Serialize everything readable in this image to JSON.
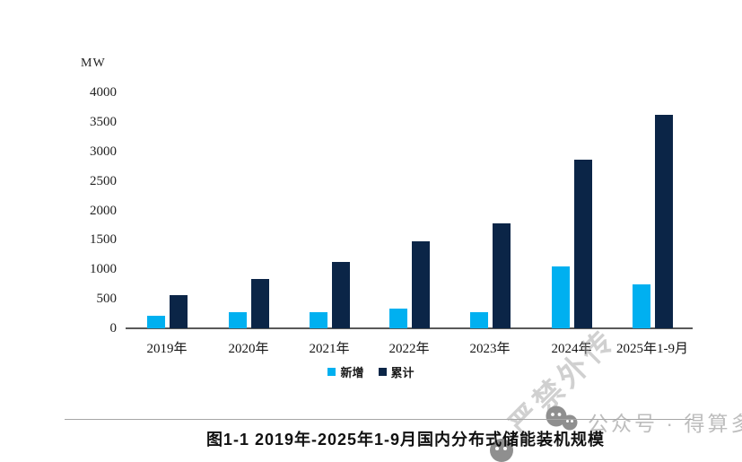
{
  "watermark": {
    "stamp_text": "严禁外传",
    "account_text": "公众号 · 得算多"
  },
  "caption": {
    "text": "图1-1 2019年-2025年1-9月国内分布式储能装机规模"
  },
  "chart_data": {
    "type": "bar",
    "title": "图1-1 2019年-2025年1-9月国内分布式储能装机规模",
    "unit_label": "MW",
    "xlabel": "",
    "ylabel": "MW",
    "categories": [
      "2019年",
      "2020年",
      "2021年",
      "2022年",
      "2023年",
      "2024年",
      "2025年1-9月"
    ],
    "series": [
      {
        "name": "新增",
        "color": "#00b0f0",
        "values": [
          220,
          280,
          280,
          340,
          280,
          1050,
          750
        ]
      },
      {
        "name": "累计",
        "color": "#0b2547",
        "values": [
          570,
          840,
          1130,
          1480,
          1780,
          2860,
          3620
        ]
      }
    ],
    "ylim": [
      0,
      4000
    ],
    "ytick_step": 500,
    "yticks": [
      0,
      500,
      1000,
      1500,
      2000,
      2500,
      3000,
      3500,
      4000
    ],
    "grid": false,
    "legend_position": "bottom"
  }
}
